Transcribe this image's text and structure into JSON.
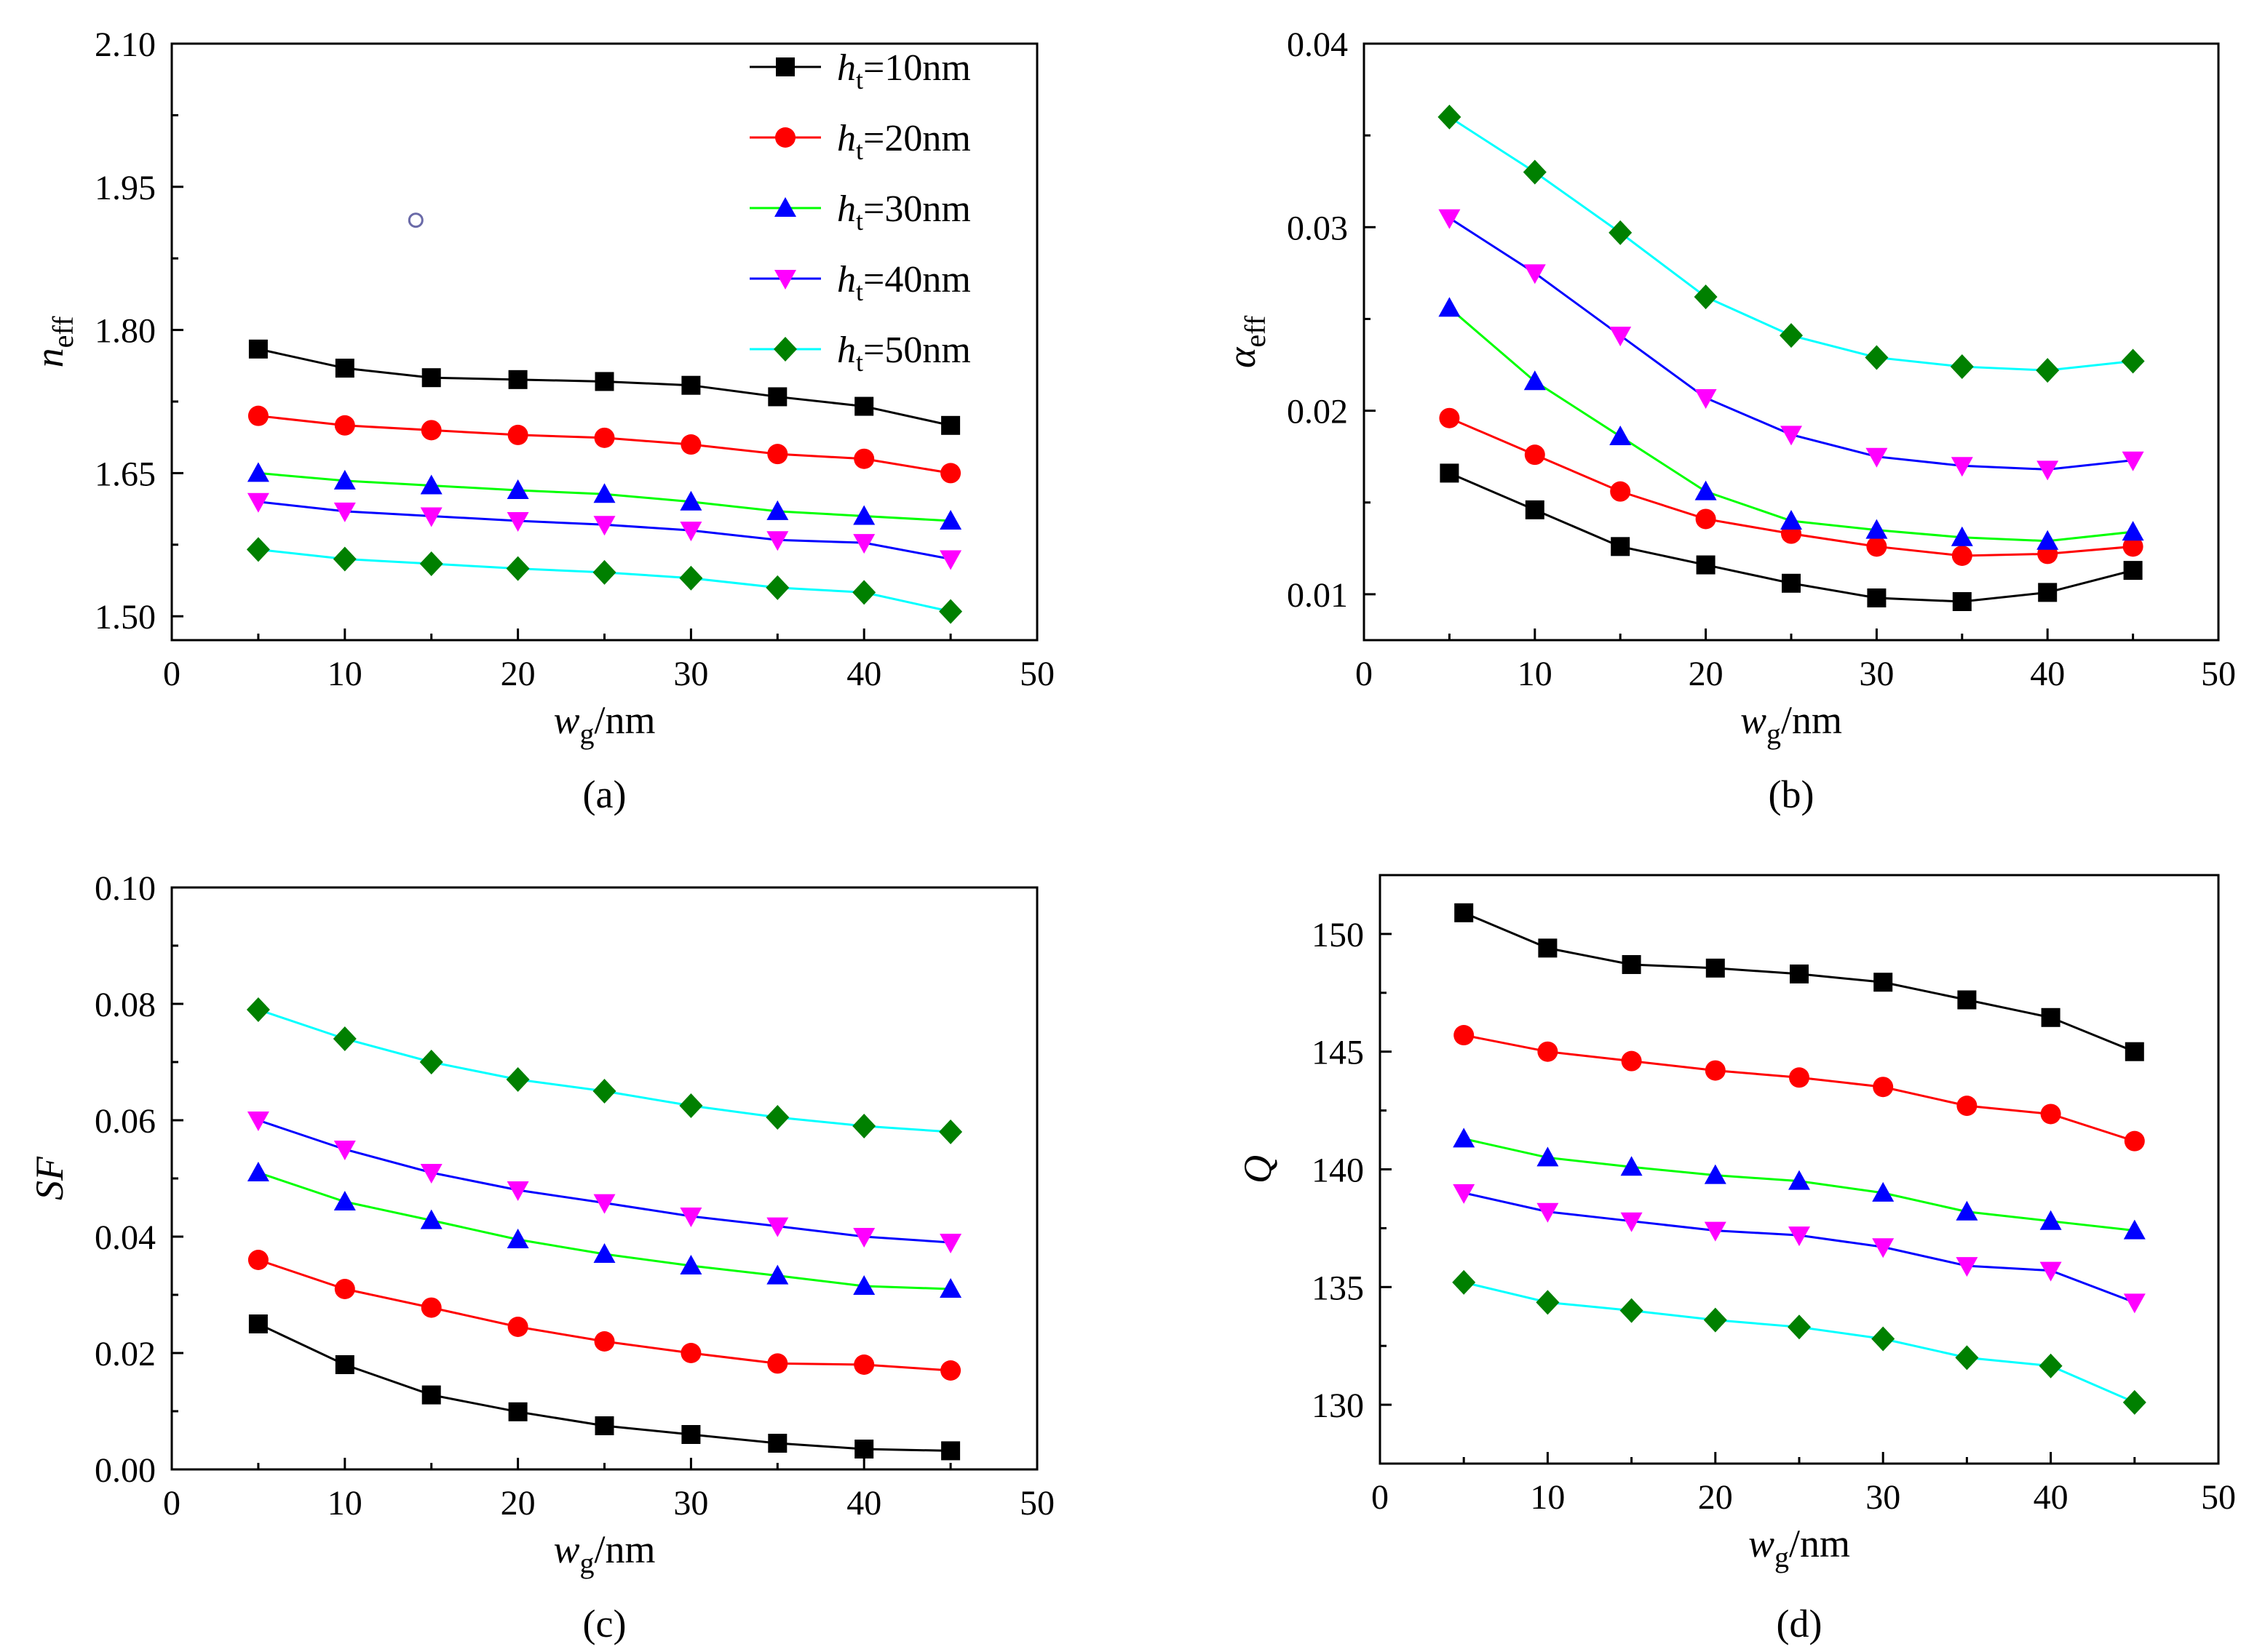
{
  "figure": {
    "legend_prefix": "h",
    "legend_subscript": "t"
  },
  "chart_data": [
    {
      "id": "a",
      "type": "line",
      "panel_label": "(a)",
      "xlabel": {
        "base": "w",
        "sub": "g",
        "rest": "/nm"
      },
      "ylabel": {
        "base": "n",
        "sub": "eff",
        "italic": true
      },
      "xlim": [
        0,
        50
      ],
      "ylim": [
        1.475,
        2.1
      ],
      "xticks": [
        0,
        10,
        20,
        30,
        40,
        50
      ],
      "yticks": [
        1.5,
        1.65,
        1.8,
        1.95,
        2.1
      ],
      "ytick_labels": [
        "1.50",
        "1.65",
        "1.80",
        "1.95",
        "2.10"
      ],
      "legend_location": "top-right",
      "x": [
        5,
        10,
        15,
        20,
        25,
        30,
        35,
        40,
        45
      ],
      "series": [
        {
          "name": "h_t=10nm",
          "legend_label": "=10nm",
          "color": "#000000",
          "marker": "square",
          "values": [
            1.78,
            1.76,
            1.75,
            1.748,
            1.746,
            1.742,
            1.73,
            1.72,
            1.7
          ]
        },
        {
          "name": "h_t=20nm",
          "legend_label": "=20nm",
          "color": "#ff0000",
          "marker": "circle",
          "values": [
            1.71,
            1.7,
            1.695,
            1.69,
            1.687,
            1.68,
            1.67,
            1.665,
            1.65
          ]
        },
        {
          "name": "h_t=30nm",
          "legend_label": "=30nm",
          "color": "#00ff00",
          "markerColor": "#0000ff",
          "marker": "triangle-up",
          "values": [
            1.65,
            1.642,
            1.637,
            1.632,
            1.628,
            1.62,
            1.61,
            1.605,
            1.6
          ]
        },
        {
          "name": "h_t=40nm",
          "legend_label": "=40nm",
          "color": "#0000ff",
          "markerColor": "#ff00ff",
          "marker": "triangle-down",
          "values": [
            1.62,
            1.61,
            1.605,
            1.6,
            1.596,
            1.59,
            1.58,
            1.577,
            1.56
          ]
        },
        {
          "name": "h_t=50nm",
          "legend_label": "=50nm",
          "color": "#00ffff",
          "markerColor": "#008000",
          "marker": "diamond",
          "values": [
            1.57,
            1.56,
            1.555,
            1.55,
            1.546,
            1.54,
            1.53,
            1.525,
            1.505
          ]
        }
      ],
      "annotation": {
        "type": "hollow-circle",
        "x": 14.1,
        "y": 1.915
      }
    },
    {
      "id": "b",
      "type": "line",
      "panel_label": "(b)",
      "xlabel": {
        "base": "w",
        "sub": "g",
        "rest": "/nm"
      },
      "ylabel": {
        "base": "α",
        "sub": "eff",
        "italic": true
      },
      "xlim": [
        0,
        50
      ],
      "ylim": [
        0.0075,
        0.04
      ],
      "xticks": [
        0,
        10,
        20,
        30,
        40,
        50
      ],
      "yticks": [
        0.01,
        0.02,
        0.03,
        0.04
      ],
      "ytick_labels": [
        "0.01",
        "0.02",
        "0.03",
        "0.04"
      ],
      "x": [
        5,
        10,
        15,
        20,
        25,
        30,
        35,
        40,
        45
      ],
      "series": [
        {
          "name": "h_t=10nm",
          "color": "#000000",
          "marker": "square",
          "values": [
            0.0166,
            0.0146,
            0.0126,
            0.0116,
            0.0106,
            0.0098,
            0.0096,
            0.0101,
            0.0113
          ]
        },
        {
          "name": "h_t=20nm",
          "color": "#ff0000",
          "marker": "circle",
          "values": [
            0.0196,
            0.0176,
            0.0156,
            0.0141,
            0.0133,
            0.0126,
            0.0121,
            0.0122,
            0.0126
          ]
        },
        {
          "name": "h_t=30nm",
          "color": "#00ff00",
          "markerColor": "#0000ff",
          "marker": "triangle-up",
          "values": [
            0.0256,
            0.0216,
            0.0186,
            0.0156,
            0.014,
            0.0135,
            0.0131,
            0.0129,
            0.0134
          ]
        },
        {
          "name": "h_t=40nm",
          "color": "#0000ff",
          "markerColor": "#ff00ff",
          "marker": "triangle-down",
          "values": [
            0.0305,
            0.0275,
            0.0241,
            0.0207,
            0.0187,
            0.0175,
            0.017,
            0.0168,
            0.0173
          ]
        },
        {
          "name": "h_t=50nm",
          "color": "#00ffff",
          "markerColor": "#008000",
          "marker": "diamond",
          "values": [
            0.036,
            0.033,
            0.0297,
            0.0262,
            0.0241,
            0.0229,
            0.0224,
            0.0222,
            0.0227
          ]
        }
      ]
    },
    {
      "id": "c",
      "type": "line",
      "panel_label": "(c)",
      "xlabel": {
        "base": "w",
        "sub": "g",
        "rest": "/nm"
      },
      "ylabel": {
        "base": "SF",
        "sub": "",
        "italic": true
      },
      "xlim": [
        0,
        50
      ],
      "ylim": [
        0,
        0.1
      ],
      "xticks": [
        0,
        10,
        20,
        30,
        40,
        50
      ],
      "yticks": [
        0,
        0.02,
        0.04,
        0.06,
        0.08,
        0.1
      ],
      "ytick_labels": [
        "0.00",
        "0.02",
        "0.04",
        "0.06",
        "0.08",
        "0.10"
      ],
      "x": [
        5,
        10,
        15,
        20,
        25,
        30,
        35,
        40,
        45
      ],
      "series": [
        {
          "name": "h_t=10nm",
          "color": "#000000",
          "marker": "square",
          "values": [
            0.025,
            0.018,
            0.0128,
            0.0099,
            0.0075,
            0.006,
            0.0045,
            0.0035,
            0.0032
          ]
        },
        {
          "name": "h_t=20nm",
          "color": "#ff0000",
          "marker": "circle",
          "values": [
            0.036,
            0.031,
            0.0278,
            0.0245,
            0.022,
            0.02,
            0.0182,
            0.018,
            0.017
          ]
        },
        {
          "name": "h_t=30nm",
          "color": "#00ff00",
          "markerColor": "#0000ff",
          "marker": "triangle-up",
          "values": [
            0.051,
            0.046,
            0.0428,
            0.0395,
            0.037,
            0.035,
            0.0333,
            0.0315,
            0.031
          ]
        },
        {
          "name": "h_t=40nm",
          "color": "#0000ff",
          "markerColor": "#ff00ff",
          "marker": "triangle-down",
          "values": [
            0.06,
            0.055,
            0.051,
            0.048,
            0.0458,
            0.0435,
            0.0418,
            0.04,
            0.039
          ]
        },
        {
          "name": "h_t=50nm",
          "color": "#00ffff",
          "markerColor": "#008000",
          "marker": "diamond",
          "values": [
            0.079,
            0.074,
            0.07,
            0.067,
            0.065,
            0.0625,
            0.0605,
            0.059,
            0.058
          ]
        }
      ]
    },
    {
      "id": "d",
      "type": "line",
      "panel_label": "(d)",
      "xlabel": {
        "base": "w",
        "sub": "g",
        "rest": "/nm"
      },
      "ylabel": {
        "base": "Q",
        "sub": "",
        "italic": true
      },
      "xlim": [
        0,
        50
      ],
      "ylim": [
        127.5,
        152.5
      ],
      "xticks": [
        0,
        10,
        20,
        30,
        40,
        50
      ],
      "yticks": [
        130,
        135,
        140,
        145,
        150
      ],
      "ytick_labels": [
        "130",
        "135",
        "140",
        "145",
        "150"
      ],
      "x": [
        5,
        10,
        15,
        20,
        25,
        30,
        35,
        40,
        45
      ],
      "series": [
        {
          "name": "h_t=10nm",
          "color": "#000000",
          "marker": "square",
          "values": [
            150.9,
            149.4,
            148.7,
            148.55,
            148.3,
            147.95,
            147.2,
            146.45,
            145.0
          ]
        },
        {
          "name": "h_t=20nm",
          "color": "#ff0000",
          "marker": "circle",
          "values": [
            145.7,
            145.0,
            144.6,
            144.2,
            143.9,
            143.5,
            142.7,
            142.35,
            141.2
          ]
        },
        {
          "name": "h_t=30nm",
          "color": "#00ff00",
          "markerColor": "#0000ff",
          "marker": "triangle-up",
          "values": [
            141.3,
            140.5,
            140.1,
            139.75,
            139.5,
            139.0,
            138.2,
            137.8,
            137.4
          ]
        },
        {
          "name": "h_t=40nm",
          "color": "#0000ff",
          "markerColor": "#ff00ff",
          "marker": "triangle-down",
          "values": [
            139.0,
            138.2,
            137.8,
            137.4,
            137.2,
            136.7,
            135.9,
            135.7,
            134.35
          ]
        },
        {
          "name": "h_t=50nm",
          "color": "#00ffff",
          "markerColor": "#008000",
          "marker": "diamond",
          "values": [
            135.2,
            134.35,
            134.0,
            133.6,
            133.3,
            132.8,
            132.0,
            131.65,
            130.1
          ]
        }
      ]
    }
  ]
}
